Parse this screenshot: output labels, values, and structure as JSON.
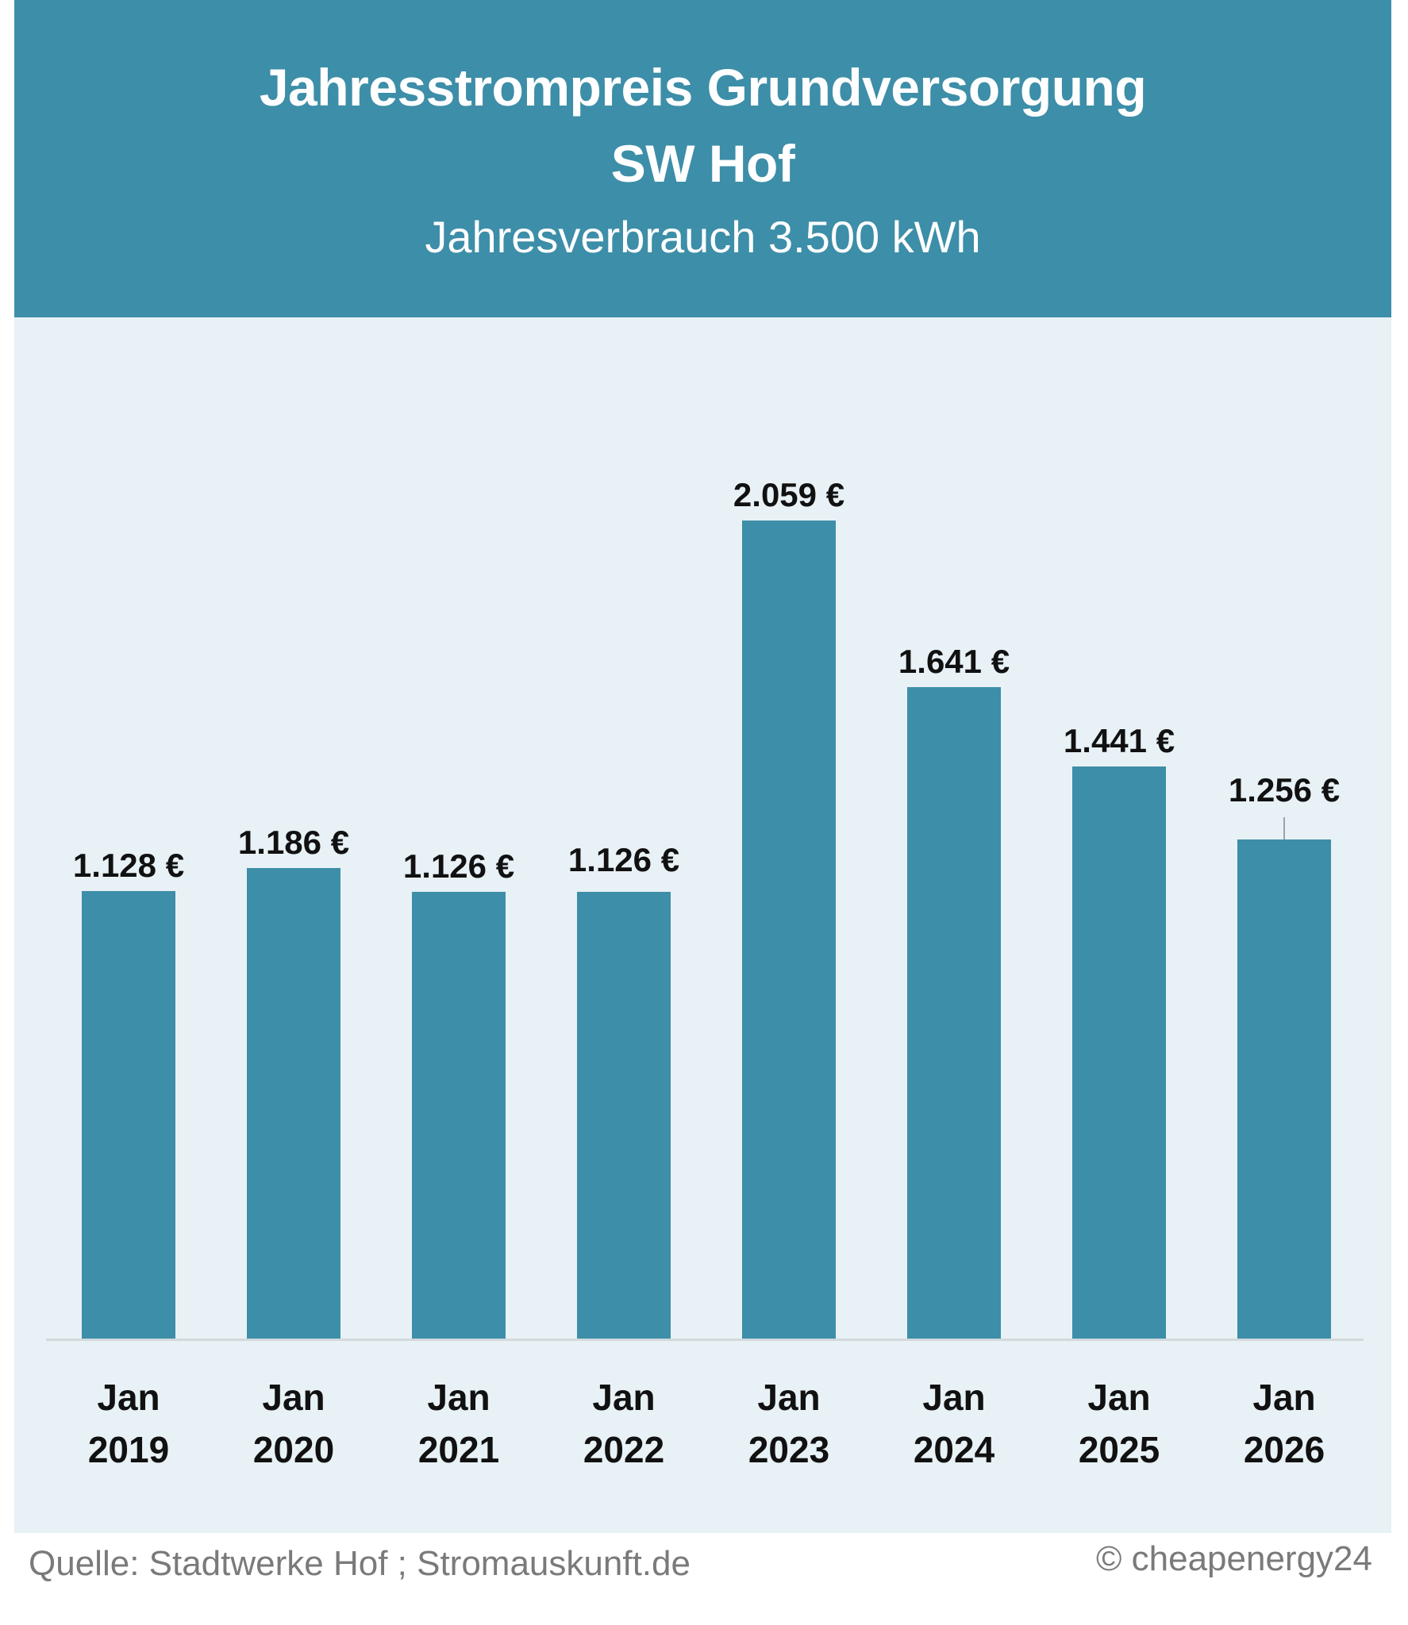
{
  "header": {
    "title_line1": "Jahresstrompreis Grundversorgung",
    "title_line2": "SW Hof",
    "subtitle": "Jahresverbrauch 3.500 kWh",
    "background_color": "#3d8ea8"
  },
  "footer": {
    "source": "Quelle: Stadtwerke Hof ; Stromauskunft.de",
    "copyright": "© cheapenergy24"
  },
  "chart_data": {
    "type": "bar",
    "title": "Jahresstrompreis Grundversorgung SW Hof",
    "subtitle": "Jahresverbrauch 3.500 kWh",
    "categories": [
      "Jan 2019",
      "Jan 2020",
      "Jan 2021",
      "Jan 2022",
      "Jan 2023",
      "Jan 2024",
      "Jan 2025",
      "Jan 2026"
    ],
    "category_lines": [
      [
        "Jan",
        "2019"
      ],
      [
        "Jan",
        "2020"
      ],
      [
        "Jan",
        "2021"
      ],
      [
        "Jan",
        "2022"
      ],
      [
        "Jan",
        "2023"
      ],
      [
        "Jan",
        "2024"
      ],
      [
        "Jan",
        "2025"
      ],
      [
        "Jan",
        "2026"
      ]
    ],
    "values": [
      1128,
      1186,
      1126,
      1126,
      2059,
      1641,
      1441,
      1256
    ],
    "value_labels": [
      "1.128 €",
      "1.186 €",
      "1.126 €",
      "1.126 €",
      "2.059 €",
      "1.641 €",
      "1.441 €",
      "1.256 €"
    ],
    "unit": "€",
    "xlabel": "",
    "ylabel": "",
    "ylim": [
      0,
      2059
    ],
    "grid": false,
    "legend": null,
    "bar_color": "#3d8ea8",
    "plot_background": "#e8f1f5"
  }
}
